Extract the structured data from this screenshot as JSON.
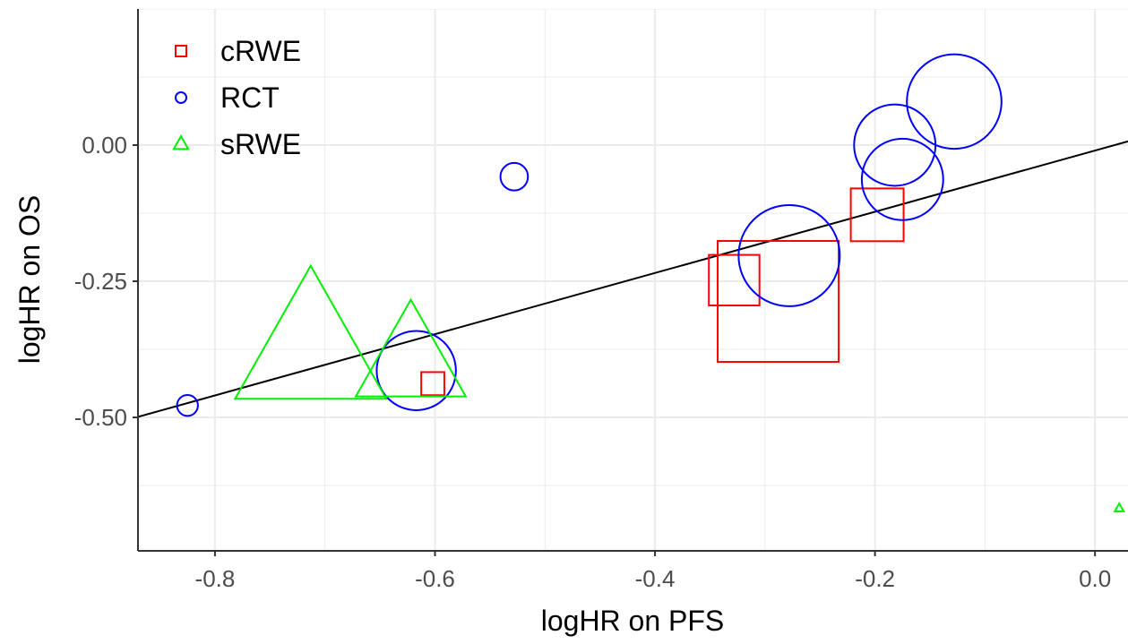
{
  "chart_data": {
    "type": "scatter",
    "xlabel": "logHR on PFS",
    "ylabel": "logHR on OS",
    "xlim": [
      -0.87,
      0.03
    ],
    "ylim": [
      -0.745,
      0.25
    ],
    "x_ticks": [
      -0.8,
      -0.6,
      -0.4,
      -0.2,
      0.0
    ],
    "x_tick_labels": [
      "-0.8",
      "-0.6",
      "-0.4",
      "-0.2",
      "0.0"
    ],
    "y_ticks": [
      0.0,
      -0.25,
      -0.5
    ],
    "y_tick_labels": [
      "0.00",
      "-0.25",
      "-0.50"
    ],
    "grid": true,
    "legend_position": "top-left",
    "regression_line": {
      "intercept": -0.01,
      "slope": 0.562,
      "color": "#000000"
    },
    "series": [
      {
        "name": "cRWE",
        "shape": "square",
        "color": "#ff0000",
        "points": [
          {
            "x": -0.198,
            "y": -0.128,
            "size": 0.024
          },
          {
            "x": -0.328,
            "y": -0.248,
            "size": 0.023
          },
          {
            "x": -0.288,
            "y": -0.287,
            "size": 0.055
          },
          {
            "x": -0.602,
            "y": -0.438,
            "size": 0.0105
          }
        ]
      },
      {
        "name": "RCT",
        "shape": "circle",
        "color": "#0000ff",
        "points": [
          {
            "x": -0.128,
            "y": 0.08,
            "size": 0.043
          },
          {
            "x": -0.182,
            "y": 0.0,
            "size": 0.037
          },
          {
            "x": -0.175,
            "y": -0.063,
            "size": 0.037
          },
          {
            "x": -0.528,
            "y": -0.058,
            "size": 0.0125
          },
          {
            "x": -0.278,
            "y": -0.203,
            "size": 0.046
          },
          {
            "x": -0.617,
            "y": -0.414,
            "size": 0.036
          },
          {
            "x": -0.825,
            "y": -0.478,
            "size": 0.0095
          }
        ]
      },
      {
        "name": "sRWE",
        "shape": "triangle",
        "color": "#00ee00",
        "points": [
          {
            "x": -0.713,
            "y": -0.373,
            "size": 0.055
          },
          {
            "x": -0.622,
            "y": -0.394,
            "size": 0.04
          },
          {
            "x": 0.022,
            "y": -0.667,
            "size": 0.0025
          }
        ]
      }
    ]
  }
}
